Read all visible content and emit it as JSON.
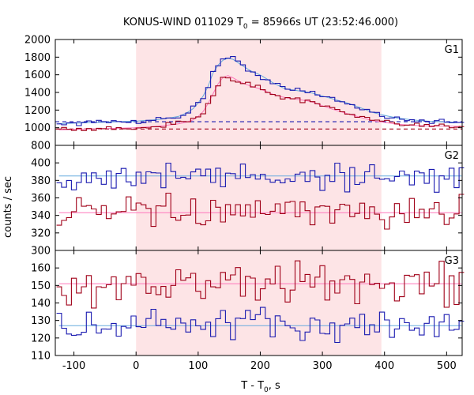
{
  "chart_data": {
    "type": "line",
    "title": "KONUS-WIND 011029 T",
    "title_sub": "0",
    "title_rest": " = 85966s UT (23:52:46.000)",
    "xlabel": "T - T",
    "xlabel_sub": "0",
    "xlabel_rest": ", s",
    "ylabel": "counts / sec",
    "xlim": [
      -130,
      525
    ],
    "x_ticks": [
      -100,
      0,
      100,
      200,
      300,
      400,
      500
    ],
    "shaded_interval": [
      0,
      395
    ],
    "bin_width": 8,
    "colors": {
      "shade": "#fde4e6",
      "blue": "#1a1ab0",
      "red": "#a00018",
      "light_blue": "#66aadd",
      "pink": "#ff77bb"
    },
    "panels": [
      {
        "label": "G1",
        "ylim": [
          800,
          2000
        ],
        "y_ticks": [
          800,
          1000,
          1200,
          1400,
          1600,
          1800,
          2000
        ],
        "backgrounds": [
          {
            "color": "blue",
            "value": 1068
          },
          {
            "color": "red",
            "value": 985
          }
        ],
        "series": [
          {
            "color": "blue",
            "fit_color": "light_blue",
            "x": [
              -128,
              0,
              40,
              70,
              90,
              105,
              115,
              125,
              135,
              145,
              155,
              170,
              185,
              200,
              220,
              240,
              260,
              280,
              300,
              320,
              340,
              360,
              380,
              400,
              420,
              450,
              480,
              520
            ],
            "y": [
              1045,
              1075,
              1095,
              1130,
              1200,
              1320,
              1450,
              1640,
              1740,
              1790,
              1780,
              1710,
              1640,
              1600,
              1510,
              1440,
              1420,
              1400,
              1360,
              1320,
              1280,
              1230,
              1175,
              1140,
              1110,
              1085,
              1070,
              1060
            ]
          },
          {
            "color": "red",
            "fit_color": "pink",
            "x": [
              -128,
              0,
              40,
              70,
              90,
              105,
              115,
              125,
              135,
              145,
              155,
              170,
              185,
              200,
              220,
              240,
              260,
              280,
              300,
              320,
              340,
              360,
              380,
              400,
              420,
              450,
              480,
              520
            ],
            "y": [
              975,
              1000,
              1020,
              1045,
              1080,
              1150,
              1260,
              1400,
              1540,
              1600,
              1570,
              1510,
              1470,
              1440,
              1380,
              1340,
              1320,
              1300,
              1250,
              1200,
              1160,
              1120,
              1080,
              1060,
              1040,
              1025,
              1020,
              1015
            ]
          }
        ]
      },
      {
        "label": "G2",
        "ylim": [
          300,
          420
        ],
        "y_ticks": [
          300,
          320,
          340,
          360,
          380,
          400
        ],
        "series": [
          {
            "color": "blue",
            "fit_color": "light_blue",
            "x": [
              -128,
              520
            ],
            "y": [
              385,
              385
            ],
            "noise": 9
          },
          {
            "color": "red",
            "fit_color": "pink",
            "x": [
              -128,
              520
            ],
            "y": [
              343,
              343
            ],
            "noise": 8
          }
        ]
      },
      {
        "label": "G3",
        "ylim": [
          110,
          170
        ],
        "y_ticks": [
          110,
          120,
          130,
          140,
          150,
          160
        ],
        "series": [
          {
            "color": "red",
            "fit_color": "pink",
            "x": [
              -128,
              520
            ],
            "y": [
              151,
              151
            ],
            "noise": 6
          },
          {
            "color": "blue",
            "fit_color": "light_blue",
            "x": [
              -128,
              520
            ],
            "y": [
              127,
              127
            ],
            "noise": 5
          }
        ]
      }
    ]
  }
}
